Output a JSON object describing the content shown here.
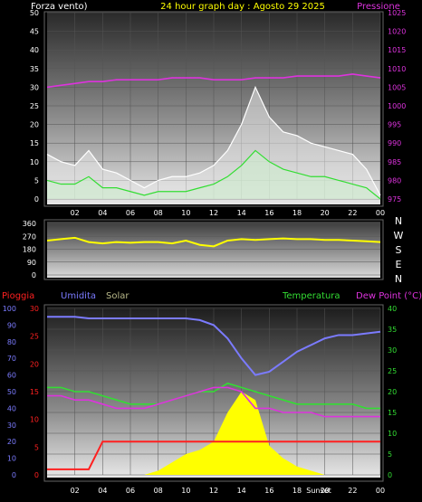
{
  "header": {
    "left_label": "Forza vento)",
    "title": "24 hour graph day : Agosto 29 2025",
    "right_label": "Pressione"
  },
  "bottom_header": {
    "rain_label": "Pioggia",
    "humidity_label": "Umidita",
    "solar_label": "Solar",
    "temp_label": "Temperatura",
    "dew_label": "Dew Point (°C)"
  },
  "hour_ticks": [
    "02",
    "04",
    "06",
    "08",
    "10",
    "12",
    "14",
    "16",
    "18",
    "20",
    "22",
    "00"
  ],
  "sunset_label": "Sunset",
  "colors": {
    "wind_gust": "#ffffff",
    "wind_avg": "#33dd33",
    "pressure": "#dd33dd",
    "direction": "#ffff00",
    "rain": "#ff2020",
    "humidity": "#7b7bff",
    "temperature": "#33dd33",
    "dewpoint": "#dd33dd",
    "solar": "#ffff00"
  },
  "chart_data": [
    {
      "type": "line",
      "name": "wind-pressure",
      "x_hours": [
        0,
        1,
        2,
        3,
        4,
        5,
        6,
        7,
        8,
        9,
        10,
        11,
        12,
        13,
        14,
        15,
        16,
        17,
        18,
        19,
        20,
        21,
        22,
        23,
        24
      ],
      "series": [
        {
          "name": "gust",
          "axis": "left",
          "values": [
            12,
            10,
            9,
            13,
            8,
            7,
            5,
            3,
            5,
            6,
            6,
            7,
            9,
            13,
            20,
            30,
            22,
            18,
            17,
            15,
            14,
            13,
            12,
            8,
            1
          ]
        },
        {
          "name": "average",
          "axis": "left",
          "values": [
            5,
            4,
            4,
            6,
            3,
            3,
            2,
            1,
            2,
            2,
            2,
            3,
            4,
            6,
            9,
            13,
            10,
            8,
            7,
            6,
            6,
            5,
            4,
            3,
            0
          ]
        },
        {
          "name": "pressure",
          "axis": "right",
          "values": [
            1005,
            1005.5,
            1006,
            1006.5,
            1006.5,
            1007,
            1007,
            1007,
            1007,
            1007.5,
            1007.5,
            1007.5,
            1007,
            1007,
            1007,
            1007.5,
            1007.5,
            1007.5,
            1008,
            1008,
            1008,
            1008,
            1008.5,
            1008,
            1007.5
          ]
        }
      ],
      "ylim_left": [
        0,
        50
      ],
      "yticks_left": [
        0,
        5,
        10,
        15,
        20,
        25,
        30,
        35,
        40,
        45,
        50
      ],
      "ylim_right": [
        975,
        1025
      ],
      "yticks_right": [
        975,
        980,
        985,
        990,
        995,
        1000,
        1005,
        1010,
        1015,
        1020,
        1025
      ]
    },
    {
      "type": "line",
      "name": "wind-direction",
      "x_hours": [
        0,
        1,
        2,
        3,
        4,
        5,
        6,
        7,
        8,
        9,
        10,
        11,
        12,
        13,
        14,
        15,
        16,
        17,
        18,
        19,
        20,
        21,
        22,
        23,
        24
      ],
      "series": [
        {
          "name": "direction",
          "values": [
            240,
            250,
            260,
            230,
            220,
            230,
            225,
            230,
            230,
            220,
            240,
            210,
            200,
            240,
            250,
            245,
            250,
            255,
            250,
            250,
            245,
            245,
            240,
            235,
            230
          ]
        }
      ],
      "ylim": [
        0,
        360
      ],
      "yticks": [
        0,
        90,
        180,
        270,
        360
      ],
      "direction_labels": [
        "N",
        "W",
        "S",
        "E",
        "N"
      ]
    },
    {
      "type": "line",
      "name": "rain-humidity-solar-temp-dew",
      "x_hours": [
        0,
        1,
        2,
        3,
        4,
        5,
        6,
        7,
        8,
        9,
        10,
        11,
        12,
        13,
        14,
        15,
        16,
        17,
        18,
        19,
        20,
        21,
        22,
        23,
        24
      ],
      "series": [
        {
          "name": "rain",
          "axis": "left",
          "values": [
            1,
            1,
            1,
            1,
            6,
            6,
            6,
            6,
            6,
            6,
            6,
            6,
            6,
            6,
            6,
            6,
            6,
            6,
            6,
            6,
            6,
            6,
            6,
            6,
            6
          ]
        },
        {
          "name": "humidity",
          "axis": "left",
          "values": [
            95,
            95,
            95,
            94,
            94,
            94,
            94,
            94,
            94,
            94,
            94,
            93,
            90,
            82,
            70,
            60,
            62,
            68,
            74,
            78,
            82,
            84,
            84,
            85,
            86
          ]
        },
        {
          "name": "temperature",
          "axis": "right",
          "values": [
            21,
            21,
            20,
            20,
            19,
            18,
            17,
            17,
            17,
            18,
            19,
            20,
            20,
            22,
            21,
            20,
            19,
            18,
            17,
            17,
            17,
            17,
            17,
            16,
            16
          ]
        },
        {
          "name": "dewpoint",
          "axis": "right",
          "values": [
            19,
            19,
            18,
            18,
            17,
            16,
            16,
            16,
            17,
            18,
            19,
            20,
            21,
            21,
            20,
            16,
            16,
            15,
            15,
            15,
            14,
            14,
            14,
            14,
            14
          ]
        },
        {
          "name": "solar",
          "axis": "right",
          "values": [
            0,
            0,
            0,
            0,
            0,
            0,
            0,
            0,
            1,
            3,
            5,
            6,
            8,
            15,
            20,
            18,
            7,
            4,
            2,
            1,
            0,
            0,
            0,
            0,
            0
          ]
        }
      ],
      "ylim_left": [
        0,
        100
      ],
      "yticks_left": [
        0,
        10,
        20,
        30,
        40,
        50,
        60,
        70,
        80,
        90,
        100
      ],
      "ylim_rain": [
        0,
        30
      ],
      "yticks_rain": [
        0,
        5,
        10,
        15,
        20,
        25,
        30
      ],
      "ylim_right": [
        0,
        40
      ],
      "yticks_right": [
        0,
        5,
        10,
        15,
        20,
        25,
        30,
        35,
        40
      ]
    }
  ]
}
